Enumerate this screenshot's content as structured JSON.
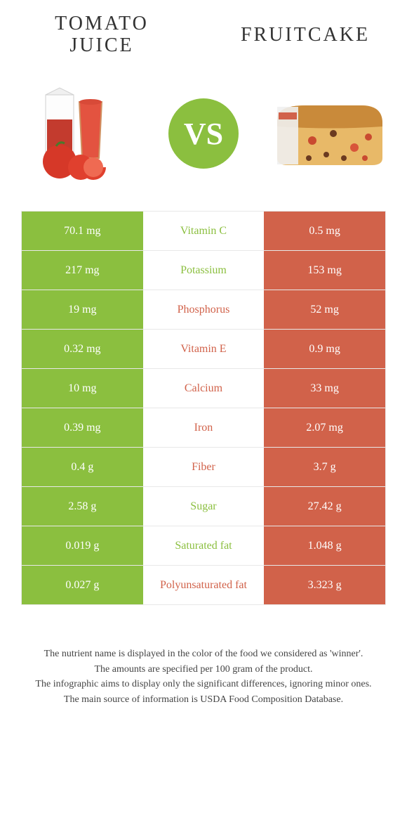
{
  "titles": {
    "left": "TOMATO JUICE",
    "right": "FRUITCAKE"
  },
  "vs": "VS",
  "colors": {
    "left_food": "#8bbf3f",
    "right_food": "#d1624a",
    "background": "#ffffff",
    "border": "#e8e8e8",
    "text": "#333333"
  },
  "rows": [
    {
      "nutrient": "Vitamin C",
      "left": "70.1 mg",
      "right": "0.5 mg",
      "left_bg": "#8bbf3f",
      "right_bg": "#d1624a",
      "nutrient_color": "#8bbf3f"
    },
    {
      "nutrient": "Potassium",
      "left": "217 mg",
      "right": "153 mg",
      "left_bg": "#8bbf3f",
      "right_bg": "#d1624a",
      "nutrient_color": "#8bbf3f"
    },
    {
      "nutrient": "Phosphorus",
      "left": "19 mg",
      "right": "52 mg",
      "left_bg": "#8bbf3f",
      "right_bg": "#d1624a",
      "nutrient_color": "#d1624a"
    },
    {
      "nutrient": "Vitamin E",
      "left": "0.32 mg",
      "right": "0.9 mg",
      "left_bg": "#8bbf3f",
      "right_bg": "#d1624a",
      "nutrient_color": "#d1624a"
    },
    {
      "nutrient": "Calcium",
      "left": "10 mg",
      "right": "33 mg",
      "left_bg": "#8bbf3f",
      "right_bg": "#d1624a",
      "nutrient_color": "#d1624a"
    },
    {
      "nutrient": "Iron",
      "left": "0.39 mg",
      "right": "2.07 mg",
      "left_bg": "#8bbf3f",
      "right_bg": "#d1624a",
      "nutrient_color": "#d1624a"
    },
    {
      "nutrient": "Fiber",
      "left": "0.4 g",
      "right": "3.7 g",
      "left_bg": "#8bbf3f",
      "right_bg": "#d1624a",
      "nutrient_color": "#d1624a"
    },
    {
      "nutrient": "Sugar",
      "left": "2.58 g",
      "right": "27.42 g",
      "left_bg": "#8bbf3f",
      "right_bg": "#d1624a",
      "nutrient_color": "#8bbf3f"
    },
    {
      "nutrient": "Saturated fat",
      "left": "0.019 g",
      "right": "1.048 g",
      "left_bg": "#8bbf3f",
      "right_bg": "#d1624a",
      "nutrient_color": "#8bbf3f"
    },
    {
      "nutrient": "Polyunsaturated fat",
      "left": "0.027 g",
      "right": "3.323 g",
      "left_bg": "#8bbf3f",
      "right_bg": "#d1624a",
      "nutrient_color": "#d1624a"
    }
  ],
  "footnotes": [
    "The nutrient name is displayed in the color of the food we considered as 'winner'.",
    "The amounts are specified per 100 gram of the product.",
    "The infographic aims to display only the significant differences, ignoring minor ones.",
    "The main source of information is USDA Food Composition Database."
  ]
}
